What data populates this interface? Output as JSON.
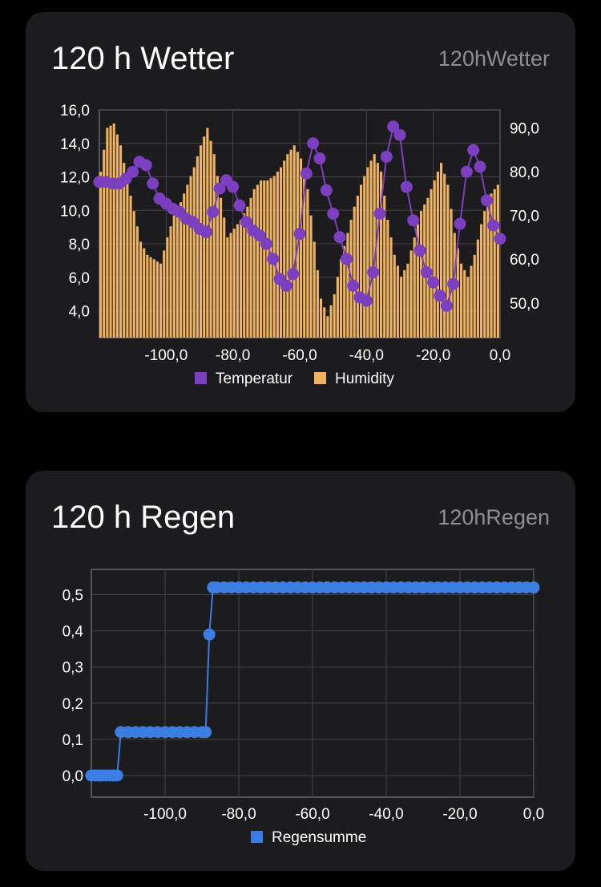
{
  "cards": [
    {
      "title": "120 h Wetter",
      "subtitle": "120hWetter"
    },
    {
      "title": "120 h Regen",
      "subtitle": "120hRegen"
    }
  ],
  "chart_data": [
    {
      "type": "bar+line",
      "x_ticks": [
        "-100,0",
        "-80,0",
        "-60,0",
        "-40,0",
        "-20,0",
        "0,0"
      ],
      "y_left_ticks": [
        "16,0",
        "14,0",
        "12,0",
        "10,0",
        "8,0",
        "6,0",
        "4,0"
      ],
      "y_right_ticks": [
        "90,0",
        "80,0",
        "70,0",
        "60,0",
        "50,0"
      ],
      "xlim": [
        -120,
        0
      ],
      "ylim_left": [
        2.4,
        16
      ],
      "ylim_right": [
        42.1,
        94.1
      ],
      "grid": true,
      "legend_position": "bottom",
      "colors": {
        "Temperatur": "#7b3fbf",
        "Humidity": "#f0b460"
      },
      "series": [
        {
          "name": "Temperatur",
          "axis": "left",
          "type": "line",
          "x": [
            -120,
            -118,
            -116,
            -114,
            -112,
            -110,
            -108,
            -106,
            -104,
            -102,
            -100,
            -98,
            -96,
            -94,
            -92,
            -90,
            -88,
            -86,
            -84,
            -82,
            -80,
            -78,
            -76,
            -74,
            -72,
            -70,
            -68,
            -66,
            -64,
            -62,
            -60,
            -58,
            -56,
            -54,
            -52,
            -50,
            -48,
            -46,
            -44,
            -42,
            -40,
            -38,
            -36,
            -34,
            -32,
            -30,
            -28,
            -26,
            -24,
            -22,
            -20,
            -18,
            -16,
            -14,
            -12,
            -10,
            -8,
            -6,
            -4,
            -2,
            0
          ],
          "values": [
            11.7,
            11.7,
            11.6,
            11.6,
            11.9,
            12.3,
            12.9,
            12.7,
            11.6,
            10.7,
            10.4,
            10.1,
            9.9,
            9.5,
            9.3,
            8.9,
            8.7,
            9.9,
            11.3,
            11.8,
            11.4,
            10.3,
            9.3,
            8.8,
            8.5,
            8.0,
            7.1,
            5.9,
            5.5,
            6.2,
            8.6,
            12.2,
            14.0,
            13.1,
            11.2,
            9.8,
            8.4,
            7.1,
            5.5,
            4.8,
            4.6,
            6.3,
            9.8,
            13.2,
            15.0,
            14.5,
            11.4,
            9.4,
            7.6,
            6.3,
            5.7,
            4.9,
            4.3,
            5.6,
            9.2,
            12.3,
            13.6,
            12.6,
            10.6,
            9.1,
            8.3
          ]
        },
        {
          "name": "Humidity",
          "axis": "right",
          "type": "bar",
          "x": [
            -120,
            -118,
            -116,
            -114,
            -112,
            -110,
            -108,
            -106,
            -104,
            -102,
            -100,
            -98,
            -96,
            -94,
            -92,
            -90,
            -88,
            -86,
            -84,
            -82,
            -80,
            -78,
            -76,
            -74,
            -72,
            -70,
            -68,
            -66,
            -64,
            -62,
            -60,
            -58,
            -56,
            -54,
            -52,
            -50,
            -48,
            -46,
            -44,
            -42,
            -40,
            -38,
            -36,
            -34,
            -32,
            -30,
            -28,
            -26,
            -24,
            -22,
            -20,
            -18,
            -16,
            -14,
            -12,
            -10,
            -8,
            -6,
            -4,
            -2,
            0
          ],
          "values": [
            80,
            90,
            91,
            86,
            78,
            71,
            64,
            61,
            60,
            59,
            65,
            70,
            73,
            77,
            81,
            86,
            90,
            84,
            74,
            65,
            67,
            69,
            72,
            76,
            78,
            78,
            79,
            81,
            84,
            86,
            83,
            76,
            64,
            51,
            47,
            52,
            60,
            66,
            72,
            77,
            81,
            84,
            80,
            69,
            61,
            56,
            59,
            65,
            71,
            74,
            78,
            82,
            77,
            66,
            59,
            56,
            61,
            68,
            74,
            76,
            78
          ]
        }
      ]
    },
    {
      "type": "line",
      "x_ticks": [
        "-100,0",
        "-80,0",
        "-60,0",
        "-40,0",
        "-20,0",
        "0,0"
      ],
      "y_ticks": [
        "0,5",
        "0,4",
        "0,3",
        "0,2",
        "0,1",
        "0,0"
      ],
      "xlim": [
        -120,
        0
      ],
      "ylim": [
        -0.06,
        0.57
      ],
      "grid": true,
      "legend_position": "bottom",
      "colors": {
        "Regensumme": "#3b7de0"
      },
      "series": [
        {
          "name": "Regensumme",
          "x": [
            -120,
            -119,
            -118,
            -117,
            -116,
            -115,
            -114,
            -113,
            -112,
            -110,
            -108,
            -106,
            -104,
            -102,
            -100,
            -98,
            -96,
            -94,
            -92,
            -90,
            -89,
            -88,
            -87,
            -86,
            -84,
            -82,
            -80,
            -78,
            -76,
            -74,
            -72,
            -70,
            -68,
            -66,
            -64,
            -62,
            -60,
            -58,
            -56,
            -54,
            -52,
            -50,
            -48,
            -46,
            -44,
            -42,
            -40,
            -38,
            -36,
            -34,
            -32,
            -30,
            -28,
            -26,
            -24,
            -22,
            -20,
            -18,
            -16,
            -14,
            -12,
            -10,
            -8,
            -6,
            -4,
            -2,
            0
          ],
          "values": [
            0,
            0,
            0,
            0,
            0,
            0,
            0,
            0,
            0.12,
            0.12,
            0.12,
            0.12,
            0.12,
            0.12,
            0.12,
            0.12,
            0.12,
            0.12,
            0.12,
            0.12,
            0.12,
            0.39,
            0.52,
            0.52,
            0.52,
            0.52,
            0.52,
            0.52,
            0.52,
            0.52,
            0.52,
            0.52,
            0.52,
            0.52,
            0.52,
            0.52,
            0.52,
            0.52,
            0.52,
            0.52,
            0.52,
            0.52,
            0.52,
            0.52,
            0.52,
            0.52,
            0.52,
            0.52,
            0.52,
            0.52,
            0.52,
            0.52,
            0.52,
            0.52,
            0.52,
            0.52,
            0.52,
            0.52,
            0.52,
            0.52,
            0.52,
            0.52,
            0.52,
            0.52,
            0.52,
            0.52,
            0.52
          ]
        }
      ]
    }
  ]
}
